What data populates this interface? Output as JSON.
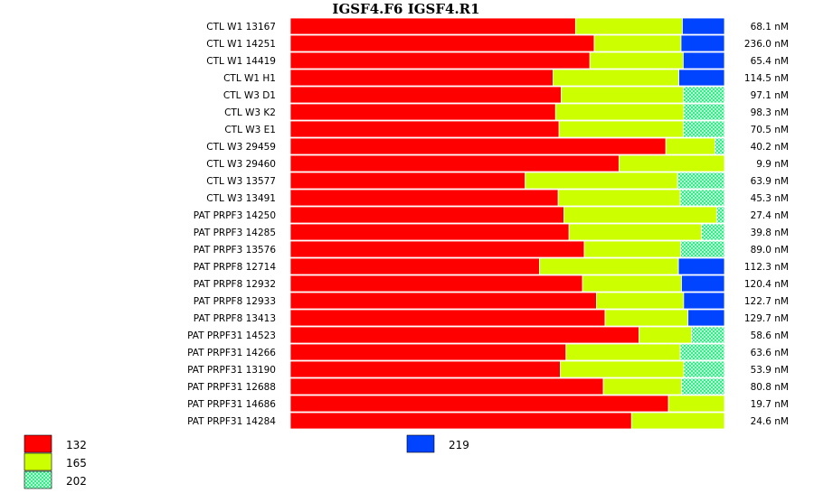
{
  "chart_data": {
    "type": "bar",
    "stacked": true,
    "normalized": true,
    "title": "IGSF4.F6  IGSF4.R1",
    "legend_placement": "bottom-left",
    "series": [
      {
        "name": "132",
        "color": "#ff0000",
        "pattern": "solid"
      },
      {
        "name": "165",
        "color": "#ccff00",
        "pattern": "solid"
      },
      {
        "name": "202",
        "color": "#33ee88",
        "pattern": "checker"
      },
      {
        "name": "219",
        "color": "#0044ff",
        "pattern": "solid"
      }
    ],
    "rows": [
      {
        "label": "CTL W1 13167",
        "fractions": [
          0.657,
          0.246,
          0,
          0.097
        ],
        "concentration": "68.1 nM"
      },
      {
        "label": "CTL W1 14251",
        "fractions": [
          0.7,
          0.2,
          0,
          0.1
        ],
        "concentration": "236.0 nM"
      },
      {
        "label": "CTL W1 14419",
        "fractions": [
          0.69,
          0.215,
          0,
          0.095
        ],
        "concentration": "65.4 nM"
      },
      {
        "label": "CTL W1 H1",
        "fractions": [
          0.605,
          0.29,
          0,
          0.105
        ],
        "concentration": "114.5 nM"
      },
      {
        "label": "CTL W3 D1",
        "fractions": [
          0.624,
          0.281,
          0.095,
          0
        ],
        "concentration": "97.1 nM"
      },
      {
        "label": "CTL W3 K2",
        "fractions": [
          0.611,
          0.295,
          0.094,
          0
        ],
        "concentration": "98.3 nM"
      },
      {
        "label": "CTL W3 E1",
        "fractions": [
          0.619,
          0.286,
          0.095,
          0
        ],
        "concentration": "70.5 nM"
      },
      {
        "label": "CTL W3 29459",
        "fractions": [
          0.865,
          0.113,
          0.022,
          0
        ],
        "concentration": "40.2 nM"
      },
      {
        "label": "CTL W3 29460",
        "fractions": [
          0.757,
          0.243,
          0,
          0
        ],
        "concentration": "9.9 nM"
      },
      {
        "label": "CTL W3 13577",
        "fractions": [
          0.541,
          0.351,
          0.108,
          0
        ],
        "concentration": "63.9 nM"
      },
      {
        "label": "CTL W3 13491",
        "fractions": [
          0.617,
          0.281,
          0.102,
          0
        ],
        "concentration": "45.3 nM"
      },
      {
        "label": "PAT PRPF3 14250",
        "fractions": [
          0.63,
          0.352,
          0.018,
          0
        ],
        "concentration": "27.4 nM"
      },
      {
        "label": "PAT PRPF3 14285",
        "fractions": [
          0.642,
          0.305,
          0.053,
          0
        ],
        "concentration": "39.8 nM"
      },
      {
        "label": "PAT PRPF3 13576",
        "fractions": [
          0.677,
          0.222,
          0.101,
          0
        ],
        "concentration": "89.0 nM"
      },
      {
        "label": "PAT PRPF8 12714",
        "fractions": [
          0.574,
          0.32,
          0,
          0.106
        ],
        "concentration": "112.3 nM"
      },
      {
        "label": "PAT PRPF8 12932",
        "fractions": [
          0.673,
          0.228,
          0,
          0.099
        ],
        "concentration": "120.4 nM"
      },
      {
        "label": "PAT PRPF8 12933",
        "fractions": [
          0.705,
          0.201,
          0,
          0.094
        ],
        "concentration": "122.7 nM"
      },
      {
        "label": "PAT PRPF8 13413",
        "fractions": [
          0.725,
          0.191,
          0,
          0.084
        ],
        "concentration": "129.7 nM"
      },
      {
        "label": "PAT PRPF31 14523",
        "fractions": [
          0.803,
          0.121,
          0.076,
          0
        ],
        "concentration": "58.6 nM"
      },
      {
        "label": "PAT PRPF31 14266",
        "fractions": [
          0.635,
          0.263,
          0.102,
          0
        ],
        "concentration": "63.6 nM"
      },
      {
        "label": "PAT PRPF31 13190",
        "fractions": [
          0.622,
          0.284,
          0.094,
          0
        ],
        "concentration": "53.9 nM"
      },
      {
        "label": "PAT PRPF31 12688",
        "fractions": [
          0.721,
          0.18,
          0.099,
          0
        ],
        "concentration": "80.8 nM"
      },
      {
        "label": "PAT PRPF31 14686",
        "fractions": [
          0.871,
          0.129,
          0,
          0
        ],
        "concentration": "19.7 nM"
      },
      {
        "label": "PAT PRPF31 14284",
        "fractions": [
          0.786,
          0.214,
          0,
          0
        ],
        "concentration": "24.6 nM"
      }
    ]
  }
}
